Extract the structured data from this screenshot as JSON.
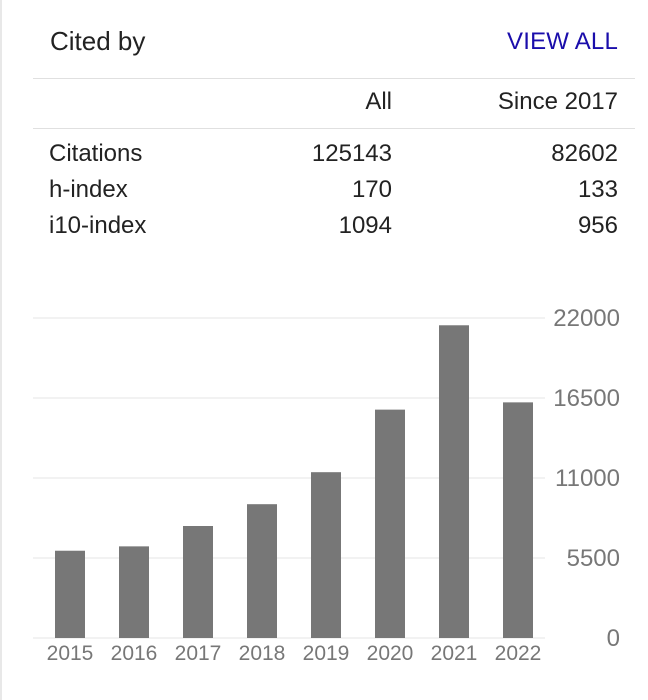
{
  "header": {
    "title": "Cited by",
    "view_all": "VIEW ALL"
  },
  "stats": {
    "columns": [
      "All",
      "Since 2017"
    ],
    "rows": [
      {
        "label": "Citations",
        "all": "125143",
        "since": "82602"
      },
      {
        "label": "h-index",
        "all": "170",
        "since": "133"
      },
      {
        "label": "i10-index",
        "all": "1094",
        "since": "956"
      }
    ]
  },
  "chart_data": {
    "type": "bar",
    "categories": [
      "2015",
      "2016",
      "2017",
      "2018",
      "2019",
      "2020",
      "2021",
      "2022"
    ],
    "values": [
      6000,
      6300,
      7700,
      9200,
      11400,
      15700,
      21500,
      16200
    ],
    "ylim": [
      0,
      22000
    ],
    "yticks": [
      0,
      5500,
      11000,
      16500,
      22000
    ],
    "ytick_labels": [
      "0",
      "5500",
      "11000",
      "16500",
      "22000"
    ],
    "grid": true,
    "bar_color": "#777777",
    "axis_side": "right"
  }
}
